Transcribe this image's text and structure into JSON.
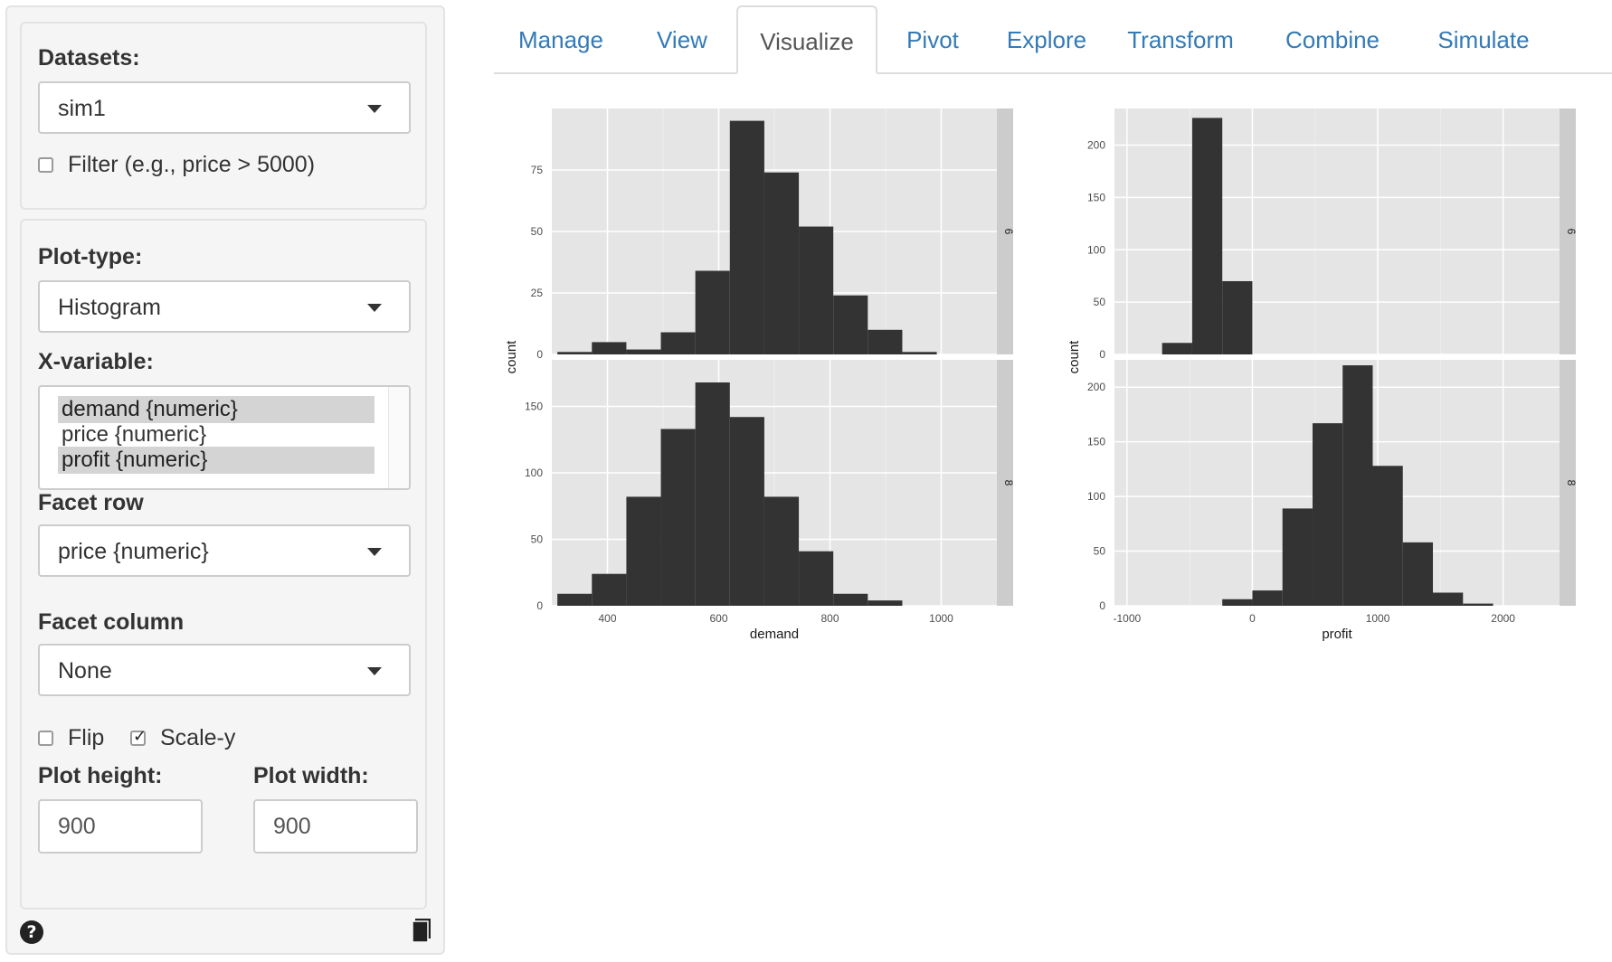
{
  "sidebar": {
    "datasets_label": "Datasets:",
    "dataset_value": "sim1",
    "filter_label": "Filter (e.g., price > 5000)",
    "filter_checked": false,
    "plot_type_label": "Plot-type:",
    "plot_type_value": "Histogram",
    "x_variable_label": "X-variable:",
    "x_variable_options": [
      {
        "label": "demand {numeric}",
        "selected": true
      },
      {
        "label": "price {numeric}",
        "selected": false
      },
      {
        "label": "profit {numeric}",
        "selected": true
      }
    ],
    "facet_row_label": "Facet row",
    "facet_row_value": "price {numeric}",
    "facet_column_label": "Facet column",
    "facet_column_value": "None",
    "flip_label": "Flip",
    "flip_checked": false,
    "scale_y_label": "Scale-y",
    "scale_y_checked": true,
    "plot_height_label": "Plot height:",
    "plot_height_value": "900",
    "plot_width_label": "Plot width:",
    "plot_width_value": "900",
    "help_icon": "question-circle-icon",
    "report_icon": "book-icon"
  },
  "tabs": [
    {
      "label": "Manage",
      "active": false
    },
    {
      "label": "View",
      "active": false
    },
    {
      "label": "Visualize",
      "active": true
    },
    {
      "label": "Pivot",
      "active": false
    },
    {
      "label": "Explore",
      "active": false
    },
    {
      "label": "Transform",
      "active": false
    },
    {
      "label": "Combine",
      "active": false
    },
    {
      "label": "Simulate",
      "active": false
    }
  ],
  "colors": {
    "panel_bg": "#e5e5e5",
    "grid": "#ffffff",
    "bar": "#333333",
    "strip": "#cccccc",
    "link": "#337ab7"
  },
  "chart_data": [
    {
      "type": "bar",
      "variable": "demand",
      "xlabel": "demand",
      "ylabel": "count",
      "xlim": [
        300,
        1100
      ],
      "xticks": [
        400,
        600,
        800,
        1000
      ],
      "facets": [
        {
          "strip_label": "6",
          "ylim": [
            0,
            100
          ],
          "yticks": [
            0,
            25,
            50,
            75
          ],
          "bin_edges": [
            310,
            372,
            434,
            496,
            558,
            620,
            682,
            744,
            806,
            868,
            930,
            992
          ],
          "counts": [
            1,
            5,
            2,
            9,
            34,
            95,
            74,
            52,
            24,
            10,
            1
          ]
        },
        {
          "strip_label": "8",
          "ylim": [
            0,
            185
          ],
          "yticks": [
            0,
            50,
            100,
            150
          ],
          "bin_edges": [
            310,
            372,
            434,
            496,
            558,
            620,
            682,
            744,
            806,
            868,
            930,
            992
          ],
          "counts": [
            9,
            24,
            82,
            133,
            168,
            142,
            82,
            41,
            9,
            4,
            0
          ]
        }
      ]
    },
    {
      "type": "bar",
      "variable": "profit",
      "xlabel": "profit",
      "ylabel": "count",
      "xlim": [
        -1100,
        2450
      ],
      "xticks": [
        -1000,
        0,
        1000,
        2000
      ],
      "facets": [
        {
          "strip_label": "6",
          "ylim": [
            0,
            235
          ],
          "yticks": [
            0,
            50,
            100,
            150,
            200
          ],
          "bin_edges": [
            -720,
            -480,
            -240,
            0
          ],
          "counts": [
            11,
            226,
            70
          ]
        },
        {
          "strip_label": "8",
          "ylim": [
            0,
            225
          ],
          "yticks": [
            0,
            50,
            100,
            150,
            200
          ],
          "bin_edges": [
            -240,
            0,
            240,
            480,
            720,
            960,
            1200,
            1440,
            1680,
            1920
          ],
          "counts": [
            6,
            14,
            89,
            167,
            220,
            128,
            58,
            12,
            2
          ]
        }
      ]
    }
  ]
}
